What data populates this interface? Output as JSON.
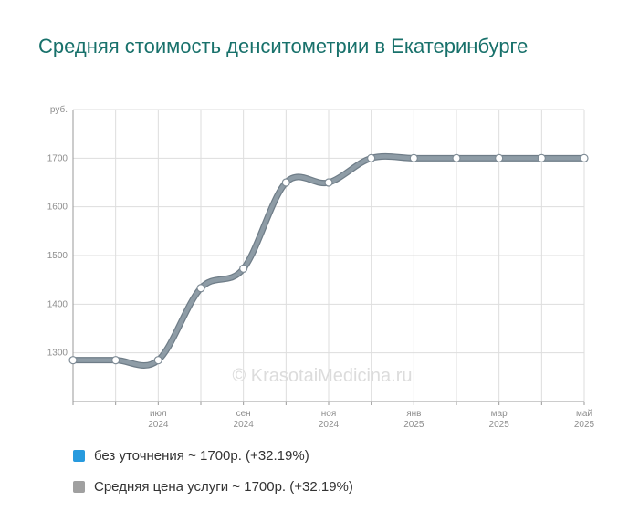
{
  "title": "Средняя стоимость денситометрии в Екатеринбурге",
  "watermark": "© KrasotaiMedicina.ru",
  "colors": {
    "title": "#18716b",
    "line": "#8e9ca6",
    "grid": "#dddddd"
  },
  "legend": [
    {
      "label": "без уточнения ~ 1700р. (+32.19%)",
      "color": "#279ade"
    },
    {
      "label": "Средняя цена услуги ~ 1700р. (+32.19%)",
      "color": "#a0a0a0"
    }
  ],
  "chart_data": {
    "type": "line",
    "ylabel": "руб.",
    "ylim": [
      1200,
      1800
    ],
    "yticks": [
      1300,
      1400,
      1500,
      1600,
      1700
    ],
    "x": [
      "2024-05",
      "2024-06",
      "2024-07",
      "2024-08",
      "2024-09",
      "2024-10",
      "2024-11",
      "2024-12",
      "2025-01",
      "2025-02",
      "2025-03",
      "2025-04",
      "2025-05"
    ],
    "xtick_labels": [
      {
        "month": "июл",
        "year": "2024"
      },
      {
        "month": "сен",
        "year": "2024"
      },
      {
        "month": "ноя",
        "year": "2024"
      },
      {
        "month": "янв",
        "year": "2025"
      },
      {
        "month": "мар",
        "year": "2025"
      },
      {
        "month": "май",
        "year": "2025"
      }
    ],
    "series": [
      {
        "values": [
          1285,
          1285,
          1285,
          1433,
          1473,
          1650,
          1650,
          1700,
          1700,
          1700,
          1700,
          1700,
          1700
        ]
      }
    ],
    "grid": true,
    "legend_position": "bottom-left"
  }
}
